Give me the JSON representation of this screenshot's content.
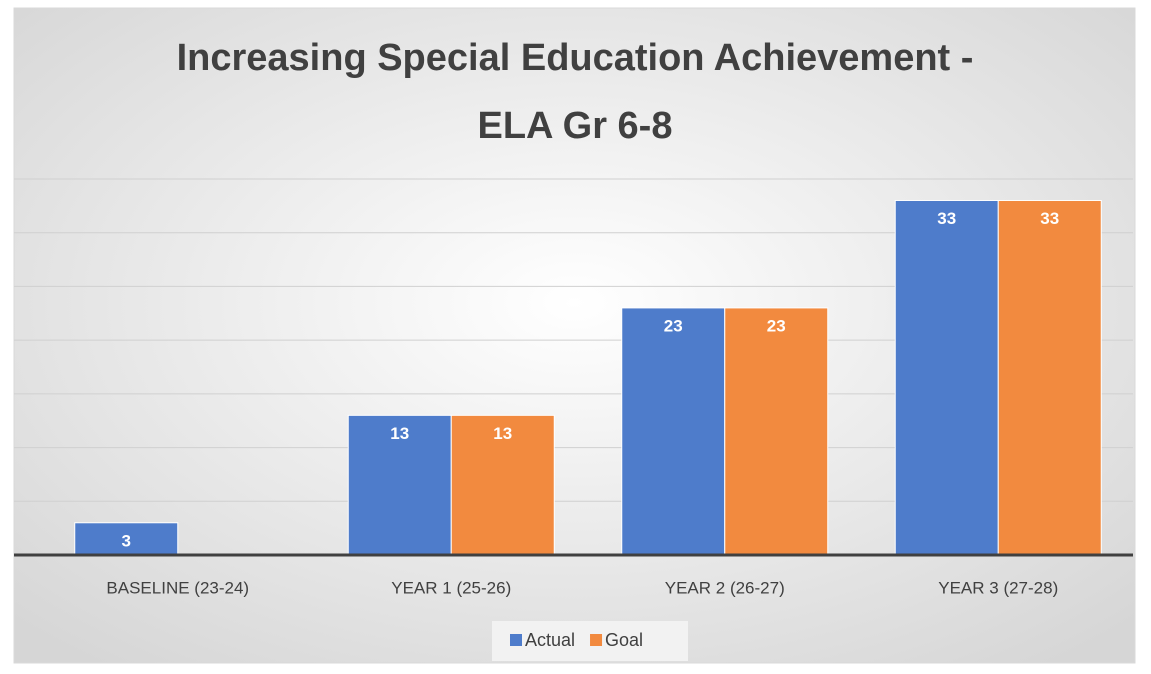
{
  "chart_data": {
    "type": "bar",
    "title": "Increasing Special Education Achievement - ELA Gr 6-8",
    "categories": [
      "BASELINE (23-24)",
      "YEAR 1 (25-26)",
      "YEAR 2 (26-27)",
      "YEAR 3 (27-28)"
    ],
    "series": [
      {
        "name": "Actual",
        "color": "#4e7ccb",
        "values": [
          3,
          13,
          23,
          33
        ]
      },
      {
        "name": "Goal",
        "color": "#f28a3f",
        "values": [
          null,
          13,
          23,
          33
        ]
      }
    ],
    "ylim": [
      0,
      35
    ],
    "yticks": [
      0,
      5,
      10,
      15,
      20,
      25,
      30,
      35
    ],
    "grid": true,
    "show_tick_labels": false,
    "legend": "bottom"
  }
}
